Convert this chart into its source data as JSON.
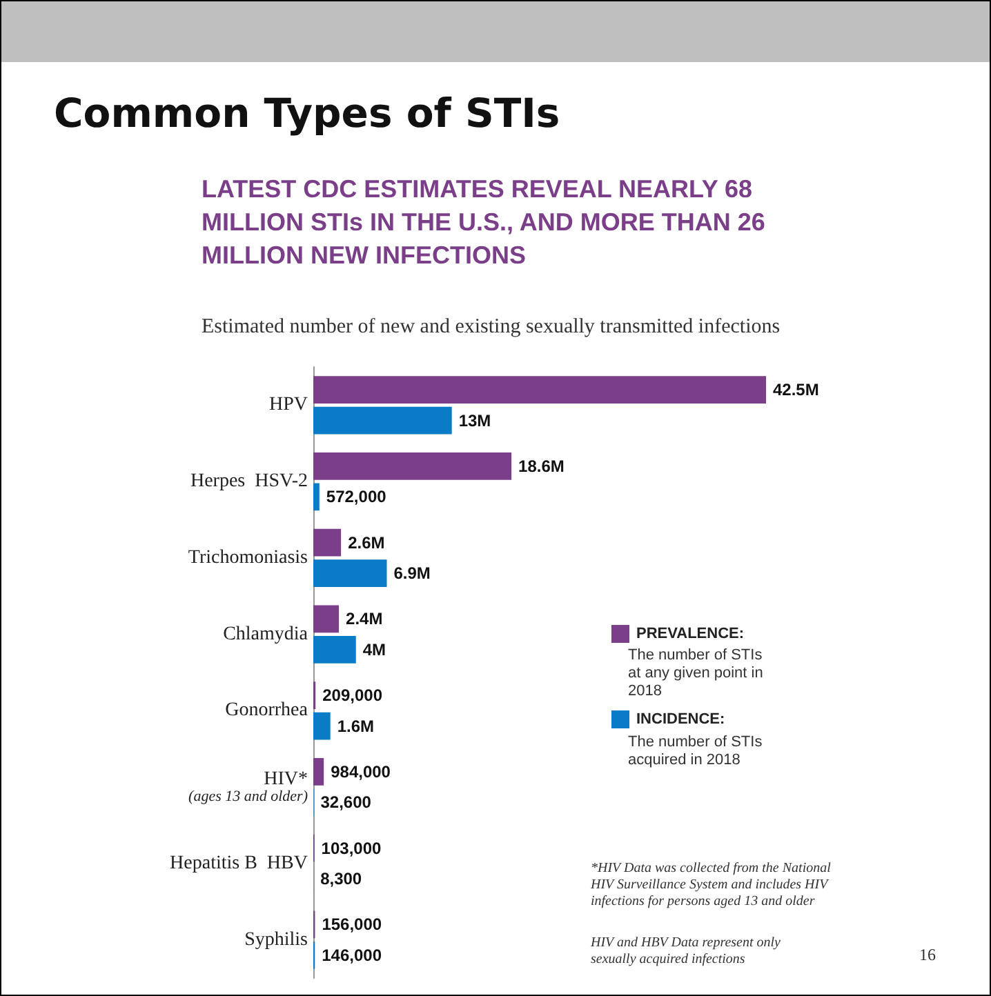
{
  "chart_data": {
    "type": "bar",
    "orientation": "horizontal",
    "tick_labels": "y",
    "title": "Common Types of STIs",
    "subtitle": "LATEST CDC ESTIMATES REVEAL NEARLY 68 MILLION STIs IN THE U.S., AND MORE THAN 26 MILLION NEW INFECTIONS",
    "categories": [
      "HPV",
      "Herpes  HSV-2",
      "Trichomoniasis",
      "Chlamydia",
      "Gonorrhea",
      "HIV*\n(ages 13 and older)",
      "Hepatitis B  HBV",
      "Syphilis"
    ],
    "series": [
      {
        "name": "PREVALENCE:",
        "color": "#7b3f8a",
        "values": [
          42500000,
          18600000,
          2600000,
          2400000,
          209000,
          984000,
          103000,
          156000
        ],
        "value_labels": [
          "42.5M",
          "18.6M",
          "2.6M",
          "2.4M",
          "209,000",
          "984,000",
          "103,000",
          "156,000"
        ]
      },
      {
        "name": "INCIDENCE:",
        "color": "#0a7bc6",
        "values": [
          13000000,
          572000,
          6900000,
          4000000,
          1600000,
          32600,
          8300,
          146000
        ],
        "value_labels": [
          "13M",
          "572,000",
          "6.9M",
          "4M",
          "1.6M",
          "32,600",
          "8,300",
          "146,000"
        ]
      }
    ],
    "legend": "right",
    "annotations": [
      "Estimated number of new and existing sexually transmitted infections",
      "The number of STIs at any given point in 2018",
      "The number of STIs acquired in 2018",
      "*HIV Data was collected from the National HIV Surveillance System and includes HIV infections for persons aged 13 and older",
      "HIV and HBV Data represent only sexually acquired infections",
      "16"
    ]
  }
}
